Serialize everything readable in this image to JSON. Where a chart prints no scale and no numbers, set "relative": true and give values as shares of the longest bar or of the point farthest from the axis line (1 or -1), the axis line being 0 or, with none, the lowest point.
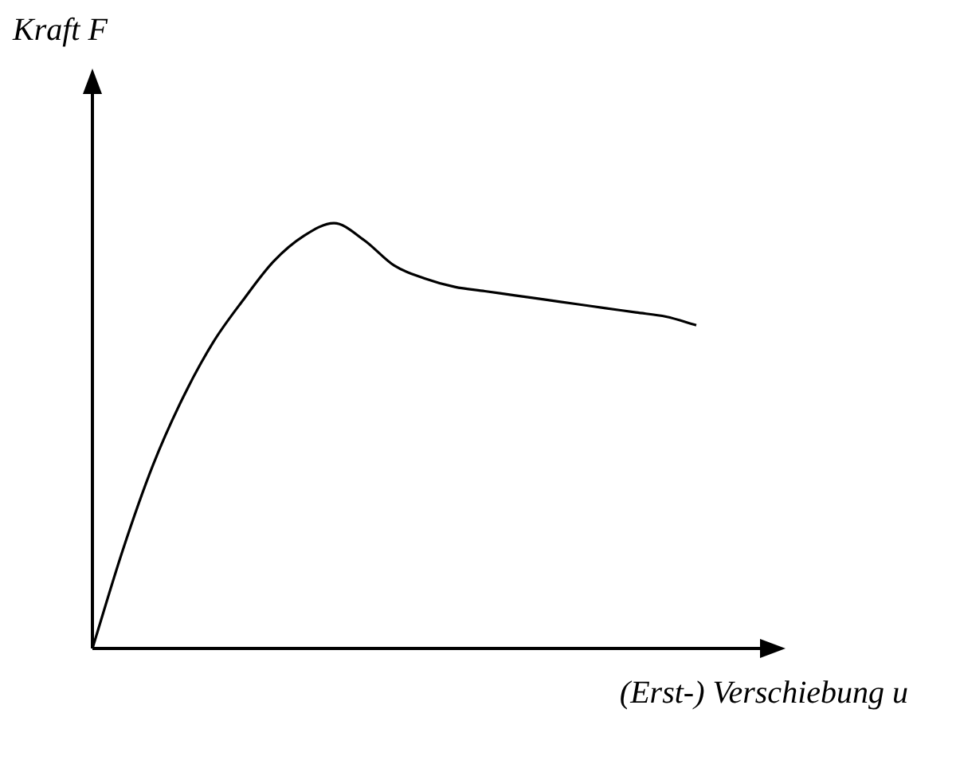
{
  "chart_data": {
    "type": "line",
    "relative": true,
    "xlabel": "(Erst-) Verschiebung u",
    "annotations": [
      "Kraft F"
    ],
    "legend": false,
    "marker": "none",
    "line_style": "solid",
    "categories": [
      null,
      null,
      null,
      null,
      null,
      null,
      null,
      null,
      null,
      null,
      null,
      null,
      null,
      null,
      null,
      null,
      null,
      null,
      null,
      null,
      null
    ],
    "series": [
      {
        "color": "#000000",
        "values": [
          0,
          0.23,
          0.43,
          0.59,
          0.72,
          0.82,
          0.91,
          0.97,
          1.0,
          0.96,
          0.9,
          0.87,
          0.85,
          0.84,
          0.83,
          0.82,
          0.81,
          0.8,
          0.79,
          0.78,
          0.76
        ]
      }
    ]
  }
}
